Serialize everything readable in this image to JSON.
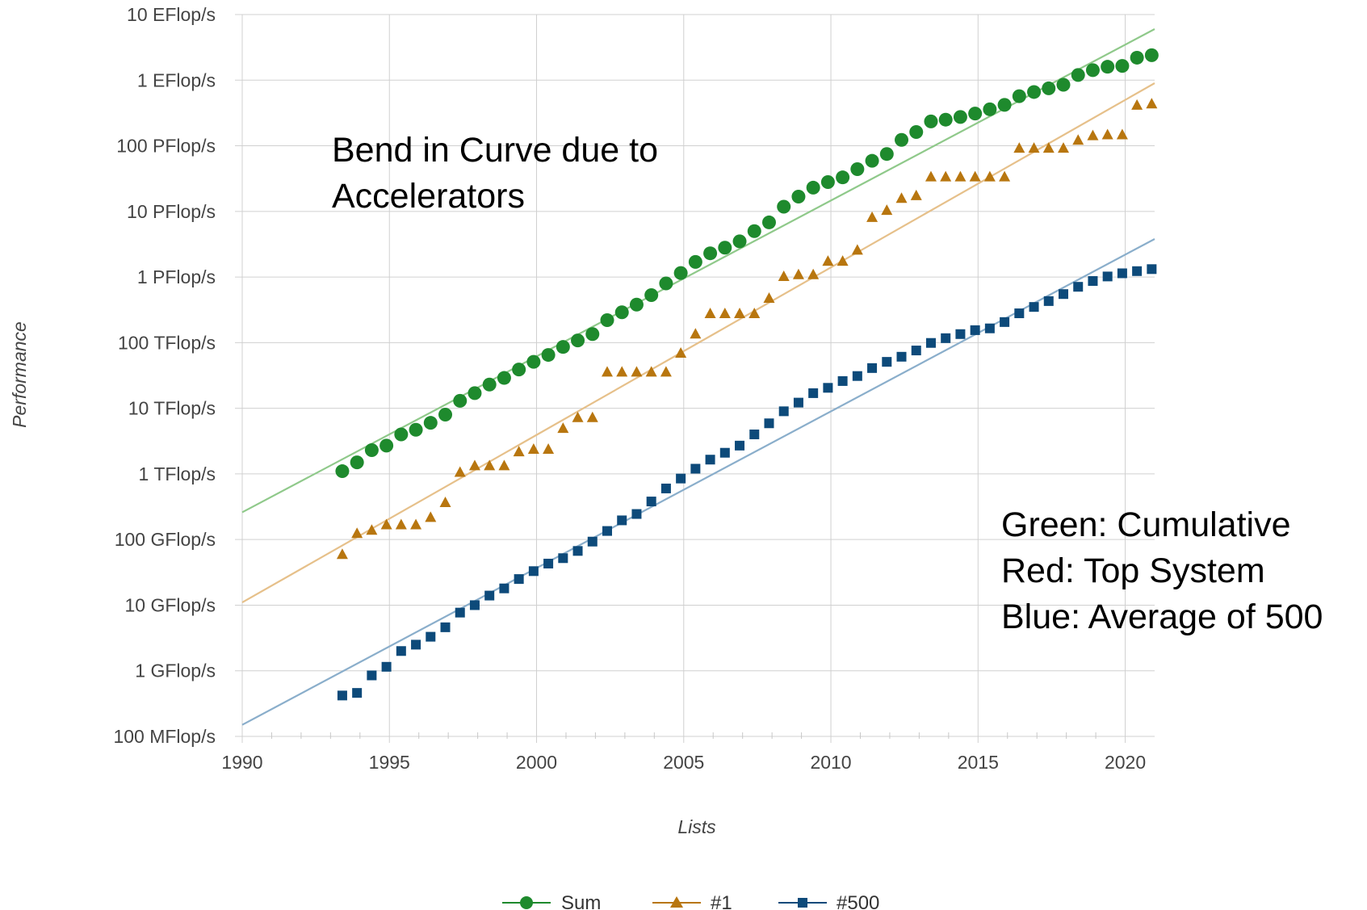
{
  "chart_data": {
    "type": "scatter",
    "title": "",
    "xlabel": "Lists",
    "ylabel": "Performance",
    "y_scale": "log",
    "xlim": [
      1990,
      2021
    ],
    "ylim_flops": [
      100000000.0,
      1e+19
    ],
    "grid": true,
    "legend_position": "bottom",
    "x_ticks": [
      1990,
      1995,
      2000,
      2005,
      2010,
      2015,
      2020
    ],
    "y_ticks": [
      {
        "value": 100000000.0,
        "label": "100 MFlop/s"
      },
      {
        "value": 1000000000.0,
        "label": "1 GFlop/s"
      },
      {
        "value": 10000000000.0,
        "label": "10 GFlop/s"
      },
      {
        "value": 100000000000.0,
        "label": "100 GFlop/s"
      },
      {
        "value": 1000000000000.0,
        "label": "1 TFlop/s"
      },
      {
        "value": 10000000000000.0,
        "label": "10 TFlop/s"
      },
      {
        "value": 100000000000000.0,
        "label": "100 TFlop/s"
      },
      {
        "value": 1000000000000000.0,
        "label": "1 PFlop/s"
      },
      {
        "value": 1e+16,
        "label": "10 PFlop/s"
      },
      {
        "value": 1e+17,
        "label": "100 PFlop/s"
      },
      {
        "value": 1e+18,
        "label": "1 EFlop/s"
      },
      {
        "value": 1e+19,
        "label": "10 EFlop/s"
      }
    ],
    "series": [
      {
        "name": "Sum",
        "color": "#1e8a2d",
        "trend_color": "#8fc98a",
        "marker": "circle",
        "trend": [
          [
            1990,
            260000000000.0
          ],
          [
            2021,
            6e+18
          ]
        ],
        "points": [
          [
            1993.4,
            1100000000000.0
          ],
          [
            1993.9,
            1500000000000.0
          ],
          [
            1994.4,
            2300000000000.0
          ],
          [
            1994.9,
            2700000000000.0
          ],
          [
            1995.4,
            4000000000000.0
          ],
          [
            1995.9,
            4700000000000.0
          ],
          [
            1996.4,
            6000000000000.0
          ],
          [
            1996.9,
            8000000000000.0
          ],
          [
            1997.4,
            13000000000000.0
          ],
          [
            1997.9,
            17000000000000.0
          ],
          [
            1998.4,
            23000000000000.0
          ],
          [
            1998.9,
            29000000000000.0
          ],
          [
            1999.4,
            39000000000000.0
          ],
          [
            1999.9,
            51000000000000.0
          ],
          [
            2000.4,
            65000000000000.0
          ],
          [
            2000.9,
            86000000000000.0
          ],
          [
            2001.4,
            108000000000000.0
          ],
          [
            2001.9,
            135000000000000.0
          ],
          [
            2002.4,
            220000000000000.0
          ],
          [
            2002.9,
            290000000000000.0
          ],
          [
            2003.4,
            380000000000000.0
          ],
          [
            2003.9,
            530000000000000.0
          ],
          [
            2004.4,
            800000000000000.0
          ],
          [
            2004.9,
            1150000000000000.0
          ],
          [
            2005.4,
            1700000000000000.0
          ],
          [
            2005.9,
            2300000000000000.0
          ],
          [
            2006.4,
            2800000000000000.0
          ],
          [
            2006.9,
            3500000000000000.0
          ],
          [
            2007.4,
            5000000000000000.0
          ],
          [
            2007.9,
            6800000000000000.0
          ],
          [
            2008.4,
            1.18e+16
          ],
          [
            2008.9,
            1.68e+16
          ],
          [
            2009.4,
            2.3e+16
          ],
          [
            2009.9,
            2.8e+16
          ],
          [
            2010.4,
            3.3e+16
          ],
          [
            2010.9,
            4.4e+16
          ],
          [
            2011.4,
            5.9e+16
          ],
          [
            2011.9,
            7.5e+16
          ],
          [
            2012.4,
            1.23e+17
          ],
          [
            2012.9,
            1.62e+17
          ],
          [
            2013.4,
            2.35e+17
          ],
          [
            2013.9,
            2.5e+17
          ],
          [
            2014.4,
            2.75e+17
          ],
          [
            2014.9,
            3.1e+17
          ],
          [
            2015.4,
            3.6e+17
          ],
          [
            2015.9,
            4.2e+17
          ],
          [
            2016.4,
            5.7e+17
          ],
          [
            2016.9,
            6.6e+17
          ],
          [
            2017.4,
            7.5e+17
          ],
          [
            2017.9,
            8.5e+17
          ],
          [
            2018.4,
            1.2e+18
          ],
          [
            2018.9,
            1.42e+18
          ],
          [
            2019.4,
            1.6e+18
          ],
          [
            2019.9,
            1.65e+18
          ],
          [
            2020.4,
            2.2e+18
          ],
          [
            2020.9,
            2.4e+18
          ]
        ]
      },
      {
        "name": "#1",
        "color": "#b8760f",
        "trend_color": "#e6c08a",
        "marker": "triangle",
        "trend": [
          [
            1990,
            11000000000.0
          ],
          [
            2021,
            9e+17
          ]
        ],
        "points": [
          [
            1993.4,
            60000000000.0
          ],
          [
            1993.9,
            125000000000.0
          ],
          [
            1994.4,
            140000000000.0
          ],
          [
            1994.9,
            170000000000.0
          ],
          [
            1995.4,
            170000000000.0
          ],
          [
            1995.9,
            170000000000.0
          ],
          [
            1996.4,
            220000000000.0
          ],
          [
            1996.9,
            370000000000.0
          ],
          [
            1997.4,
            1070000000000.0
          ],
          [
            1997.9,
            1350000000000.0
          ],
          [
            1998.4,
            1350000000000.0
          ],
          [
            1998.9,
            1350000000000.0
          ],
          [
            1999.4,
            2200000000000.0
          ],
          [
            1999.9,
            2400000000000.0
          ],
          [
            2000.4,
            2400000000000.0
          ],
          [
            2000.9,
            5000000000000.0
          ],
          [
            2001.4,
            7300000000000.0
          ],
          [
            2001.9,
            7300000000000.0
          ],
          [
            2002.4,
            36000000000000.0
          ],
          [
            2002.9,
            36000000000000.0
          ],
          [
            2003.4,
            36000000000000.0
          ],
          [
            2003.9,
            36000000000000.0
          ],
          [
            2004.4,
            36000000000000.0
          ],
          [
            2004.9,
            70000000000000.0
          ],
          [
            2005.4,
            137000000000000.0
          ],
          [
            2005.9,
            280000000000000.0
          ],
          [
            2006.4,
            280000000000000.0
          ],
          [
            2006.9,
            280000000000000.0
          ],
          [
            2007.4,
            280000000000000.0
          ],
          [
            2007.9,
            480000000000000.0
          ],
          [
            2008.4,
            1030000000000000.0
          ],
          [
            2008.9,
            1100000000000000.0
          ],
          [
            2009.4,
            1100000000000000.0
          ],
          [
            2009.9,
            1760000000000000.0
          ],
          [
            2010.4,
            1760000000000000.0
          ],
          [
            2010.9,
            2600000000000000.0
          ],
          [
            2011.4,
            8200000000000000.0
          ],
          [
            2011.9,
            1.05e+16
          ],
          [
            2012.4,
            1.6e+16
          ],
          [
            2012.9,
            1.76e+16
          ],
          [
            2013.4,
            3.4e+16
          ],
          [
            2013.9,
            3.4e+16
          ],
          [
            2014.4,
            3.4e+16
          ],
          [
            2014.9,
            3.4e+16
          ],
          [
            2015.4,
            3.4e+16
          ],
          [
            2015.9,
            3.4e+16
          ],
          [
            2016.4,
            9.3e+16
          ],
          [
            2016.9,
            9.3e+16
          ],
          [
            2017.4,
            9.3e+16
          ],
          [
            2017.9,
            9.3e+16
          ],
          [
            2018.4,
            1.23e+17
          ],
          [
            2018.9,
            1.44e+17
          ],
          [
            2019.4,
            1.49e+17
          ],
          [
            2019.9,
            1.49e+17
          ],
          [
            2020.4,
            4.2e+17
          ],
          [
            2020.9,
            4.4e+17
          ]
        ]
      },
      {
        "name": "#500",
        "color": "#0d4a7a",
        "trend_color": "#8aaecb",
        "marker": "square",
        "trend": [
          [
            1990,
            150000000.0
          ],
          [
            2021,
            3800000000000000.0
          ]
        ],
        "points": [
          [
            1993.4,
            420000000.0
          ],
          [
            1993.9,
            460000000.0
          ],
          [
            1994.4,
            850000000.0
          ],
          [
            1994.9,
            1150000000.0
          ],
          [
            1995.4,
            2000000000.0
          ],
          [
            1995.9,
            2500000000.0
          ],
          [
            1996.4,
            3300000000.0
          ],
          [
            1996.9,
            4600000000.0
          ],
          [
            1997.4,
            7700000000.0
          ],
          [
            1997.9,
            10000000000.0
          ],
          [
            1998.4,
            14000000000.0
          ],
          [
            1998.9,
            18000000000.0
          ],
          [
            1999.4,
            25000000000.0
          ],
          [
            1999.9,
            33000000000.0
          ],
          [
            2000.4,
            43000000000.0
          ],
          [
            2000.9,
            52000000000.0
          ],
          [
            2001.4,
            67000000000.0
          ],
          [
            2001.9,
            93000000000.0
          ],
          [
            2002.4,
            135000000000.0
          ],
          [
            2002.9,
            196000000000.0
          ],
          [
            2003.4,
            245000000000.0
          ],
          [
            2003.9,
            380000000000.0
          ],
          [
            2004.4,
            600000000000.0
          ],
          [
            2004.9,
            850000000000.0
          ],
          [
            2005.4,
            1200000000000.0
          ],
          [
            2005.9,
            1650000000000.0
          ],
          [
            2006.4,
            2100000000000.0
          ],
          [
            2006.9,
            2700000000000.0
          ],
          [
            2007.4,
            4000000000000.0
          ],
          [
            2007.9,
            5900000000000.0
          ],
          [
            2008.4,
            9000000000000.0
          ],
          [
            2008.9,
            12200000000000.0
          ],
          [
            2009.4,
            17000000000000.0
          ],
          [
            2009.9,
            20500000000000.0
          ],
          [
            2010.4,
            26000000000000.0
          ],
          [
            2010.9,
            31000000000000.0
          ],
          [
            2011.4,
            41000000000000.0
          ],
          [
            2011.9,
            51000000000000.0
          ],
          [
            2012.4,
            61000000000000.0
          ],
          [
            2012.9,
            76000000000000.0
          ],
          [
            2013.4,
            99000000000000.0
          ],
          [
            2013.9,
            117000000000000.0
          ],
          [
            2014.4,
            135000000000000.0
          ],
          [
            2014.9,
            155000000000000.0
          ],
          [
            2015.4,
            165000000000000.0
          ],
          [
            2015.9,
            206000000000000.0
          ],
          [
            2016.4,
            280000000000000.0
          ],
          [
            2016.9,
            350000000000000.0
          ],
          [
            2017.4,
            430000000000000.0
          ],
          [
            2017.9,
            550000000000000.0
          ],
          [
            2018.4,
            710000000000000.0
          ],
          [
            2018.9,
            870000000000000.0
          ],
          [
            2019.4,
            1020000000000000.0
          ],
          [
            2019.9,
            1140000000000000.0
          ],
          [
            2020.4,
            1230000000000000.0
          ],
          [
            2020.9,
            1320000000000000.0
          ]
        ]
      }
    ],
    "annotations": [
      {
        "lines": [
          "Bend in Curve due to",
          "Accelerators"
        ]
      },
      {
        "lines": [
          "Green: Cumulative",
          "Red: Top System",
          "Blue: Average of 500"
        ]
      }
    ]
  }
}
